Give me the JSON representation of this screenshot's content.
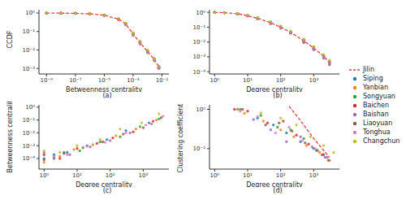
{
  "chart_data": [
    {
      "type": "scatter",
      "subtitle": "(a)",
      "xlabel": "Betweenness centrality",
      "ylabel": "CCDF",
      "log": true,
      "xlim": [
        3e-10,
        0.3
      ],
      "xticks": [
        {
          "value": 1e-09,
          "label": "10⁻⁹"
        },
        {
          "value": 1e-07,
          "label": "10⁻⁷"
        },
        {
          "value": 1e-05,
          "label": "10⁻⁵"
        },
        {
          "value": 0.001,
          "label": "10⁻³"
        },
        {
          "value": 0.1,
          "label": "10⁻¹"
        }
      ],
      "ylim": [
        0.0005,
        1.5
      ],
      "yticks": [
        {
          "value": 0.001,
          "label": "10⁻³"
        },
        {
          "value": 0.01,
          "label": "10⁻²"
        },
        {
          "value": 0.1,
          "label": "10⁻¹"
        },
        {
          "value": 1,
          "label": "10⁰"
        }
      ],
      "x": [
        1e-09,
        1e-08,
        1e-07,
        1e-06,
        1e-05,
        0.0001,
        0.0003,
        0.001,
        0.003,
        0.01,
        0.03,
        0.06
      ],
      "series": [
        {
          "name": "Jilin",
          "color": "#e8413c",
          "type": "line",
          "line_style": "dashed",
          "values": [
            0.99,
            0.98,
            0.96,
            0.9,
            0.76,
            0.46,
            0.26,
            0.073,
            0.025,
            0.0082,
            0.003,
            0.0012
          ]
        },
        {
          "name": "Siping",
          "color": "#1f77b4",
          "values": [
            0.99,
            0.98,
            0.96,
            0.9,
            0.75,
            0.45,
            0.25,
            0.07,
            0.025,
            0.008,
            0.003,
            0.0012
          ]
        },
        {
          "name": "Yanbian",
          "color": "#ff7f0e",
          "values": [
            0.99,
            0.97,
            0.95,
            0.88,
            0.72,
            0.42,
            0.23,
            0.06,
            0.02,
            0.007,
            0.0025,
            0.001
          ]
        },
        {
          "name": "Songyuan",
          "color": "#2ca02c",
          "values": [
            0.99,
            0.98,
            0.96,
            0.91,
            0.77,
            0.47,
            0.27,
            0.08,
            0.028,
            0.009,
            0.0032,
            0.0013
          ]
        },
        {
          "name": "Baichen",
          "color": "#d62728",
          "values": [
            0.99,
            0.98,
            0.97,
            0.92,
            0.78,
            0.48,
            0.26,
            0.075,
            0.026,
            0.0085,
            0.003,
            0.0011
          ]
        },
        {
          "name": "Baishan",
          "color": "#9467bd",
          "values": [
            0.99,
            0.97,
            0.95,
            0.89,
            0.73,
            0.43,
            0.24,
            0.065,
            0.022,
            0.0075,
            0.0027,
            0.001
          ]
        },
        {
          "name": "Liaoyuan",
          "color": "#8c564b",
          "values": [
            0.99,
            0.98,
            0.96,
            0.9,
            0.76,
            0.46,
            0.26,
            0.072,
            0.024,
            0.008,
            0.0028,
            0.0012
          ]
        },
        {
          "name": "Tonghua",
          "color": "#e377c2",
          "values": [
            0.99,
            0.98,
            0.95,
            0.89,
            0.74,
            0.44,
            0.24,
            0.068,
            0.023,
            0.0078,
            0.0029,
            0.0011
          ]
        },
        {
          "name": "Changchun",
          "color": "#bcbd22",
          "values": [
            0.99,
            0.98,
            0.97,
            0.92,
            0.79,
            0.5,
            0.28,
            0.085,
            0.03,
            0.01,
            0.0035,
            0.0014
          ]
        }
      ]
    },
    {
      "type": "scatter",
      "subtitle": "(b)",
      "xlabel": "Degree centrality",
      "log": true,
      "xlim": [
        0.7,
        6000
      ],
      "xticks": [
        {
          "value": 1,
          "label": "10⁰"
        },
        {
          "value": 10,
          "label": "10¹"
        },
        {
          "value": 100,
          "label": "10²"
        },
        {
          "value": 1000,
          "label": "10³"
        }
      ],
      "ylim": [
        7e-05,
        1.5
      ],
      "yticks": [
        {
          "value": 0.0001,
          "label": "10⁻⁴"
        },
        {
          "value": 0.001,
          "label": "10⁻³"
        },
        {
          "value": 0.01,
          "label": "10⁻²"
        },
        {
          "value": 0.1,
          "label": "10⁻¹"
        },
        {
          "value": 1,
          "label": "10⁰"
        }
      ],
      "x": [
        1,
        2,
        5,
        10,
        20,
        50,
        100,
        200,
        500,
        1000,
        2000,
        3000
      ],
      "series": [
        {
          "name": "Jilin",
          "color": "#e8413c",
          "type": "line",
          "line_style": "dashed",
          "values": [
            1,
            0.95,
            0.8,
            0.6,
            0.4,
            0.2,
            0.1,
            0.045,
            0.012,
            0.004,
            0.0011,
            0.0004
          ]
        },
        {
          "name": "Siping",
          "color": "#1f77b4",
          "values": [
            1,
            0.95,
            0.8,
            0.6,
            0.4,
            0.2,
            0.1,
            0.045,
            0.012,
            0.004,
            0.001,
            0.0004
          ]
        },
        {
          "name": "Yanbian",
          "color": "#ff7f0e",
          "values": [
            1,
            0.94,
            0.78,
            0.57,
            0.37,
            0.18,
            0.09,
            0.04,
            0.01,
            0.0033,
            0.0009,
            0.0003
          ]
        },
        {
          "name": "Songyuan",
          "color": "#2ca02c",
          "values": [
            1,
            0.96,
            0.82,
            0.62,
            0.42,
            0.22,
            0.11,
            0.05,
            0.014,
            0.0045,
            0.0012,
            0.0005
          ]
        },
        {
          "name": "Baichen",
          "color": "#d62728",
          "values": [
            1,
            0.95,
            0.81,
            0.61,
            0.41,
            0.21,
            0.1,
            0.047,
            0.013,
            0.004,
            0.0011,
            0.0004
          ]
        },
        {
          "name": "Baishan",
          "color": "#9467bd",
          "values": [
            1,
            0.93,
            0.77,
            0.56,
            0.36,
            0.17,
            0.085,
            0.038,
            0.009,
            0.003,
            0.0008,
            0.0003
          ]
        },
        {
          "name": "Liaoyuan",
          "color": "#8c564b",
          "values": [
            1,
            0.95,
            0.79,
            0.59,
            0.39,
            0.19,
            0.095,
            0.043,
            0.011,
            0.0037,
            0.001,
            0.0004
          ]
        },
        {
          "name": "Tonghua",
          "color": "#e377c2",
          "values": [
            1,
            0.94,
            0.8,
            0.6,
            0.39,
            0.2,
            0.1,
            0.044,
            0.012,
            0.0038,
            0.001,
            0.0004
          ]
        },
        {
          "name": "Changchun",
          "color": "#bcbd22",
          "values": [
            1,
            0.96,
            0.83,
            0.64,
            0.44,
            0.24,
            0.12,
            0.055,
            0.016,
            0.005,
            0.0014,
            0.0006
          ]
        }
      ]
    },
    {
      "type": "scatter",
      "subtitle": "(c)",
      "xlabel": "Degree centrality",
      "ylabel": "Betweenness centrality",
      "log": true,
      "xlim": [
        0.7,
        6000
      ],
      "xticks": [
        {
          "value": 1,
          "label": "10⁰"
        },
        {
          "value": 10,
          "label": "10¹"
        },
        {
          "value": 100,
          "label": "10²"
        },
        {
          "value": 1000,
          "label": "10³"
        }
      ],
      "ylim": [
        1.5e-05,
        1.5
      ],
      "yticks": [
        {
          "value": 0.0001,
          "label": "10⁻⁴"
        },
        {
          "value": 0.001,
          "label": "10⁻³"
        },
        {
          "value": 0.01,
          "label": "10⁻²"
        },
        {
          "value": 0.1,
          "label": "10⁻¹"
        },
        {
          "value": 1,
          "label": "10⁰"
        }
      ],
      "series": [
        {
          "name": "Siping",
          "color": "#1f77b4",
          "x": [
            1,
            2,
            5,
            20,
            80,
            300,
            1500
          ],
          "values": [
            0.0001,
            0.0002,
            0.0003,
            0.001,
            0.003,
            0.015,
            0.06
          ]
        },
        {
          "name": "Yanbian",
          "color": "#ff7f0e",
          "x": [
            1,
            3,
            8,
            30,
            150,
            600,
            2500
          ],
          "values": [
            5e-05,
            0.00015,
            0.0005,
            0.0012,
            0.006,
            0.02,
            0.1
          ]
        },
        {
          "name": "Songyuan",
          "color": "#2ca02c",
          "x": [
            2,
            4,
            12,
            50,
            200,
            800,
            3000
          ],
          "values": [
            0.0001,
            0.0003,
            0.0004,
            0.002,
            0.005,
            0.03,
            0.12
          ]
        },
        {
          "name": "Baichen",
          "color": "#d62728",
          "x": [
            1,
            3,
            10,
            40,
            120,
            500,
            2000
          ],
          "values": [
            0.0002,
            0.0001,
            0.0006,
            0.0015,
            0.004,
            0.012,
            0.08
          ]
        },
        {
          "name": "Baishan",
          "color": "#9467bd",
          "x": [
            1,
            2,
            6,
            25,
            100,
            400,
            1800
          ],
          "values": [
            0.0003,
            0.00012,
            0.0002,
            0.0008,
            0.0025,
            0.01,
            0.05
          ]
        },
        {
          "name": "Liaoyuan",
          "color": "#8c564b",
          "x": [
            1,
            4,
            15,
            60,
            250,
            1000,
            3500
          ],
          "values": [
            8e-05,
            0.00025,
            0.0007,
            0.002,
            0.008,
            0.025,
            0.15
          ]
        },
        {
          "name": "Tonghua",
          "color": "#e377c2",
          "x": [
            2,
            5,
            20,
            70,
            300,
            1200,
            4000
          ],
          "values": [
            0.00015,
            0.0002,
            0.0009,
            0.0018,
            0.01,
            0.04,
            0.2
          ]
        },
        {
          "name": "Changchun",
          "color": "#bcbd22",
          "x": [
            1,
            3,
            10,
            50,
            200,
            900,
            3000
          ],
          "values": [
            0.0004,
            0.0003,
            0.001,
            0.003,
            0.02,
            0.06,
            0.3
          ]
        }
      ]
    },
    {
      "type": "scatter",
      "subtitle": "(d)",
      "xlabel": "Degree centrality",
      "ylabel": "Clustering coefficient",
      "log": true,
      "legend": "right",
      "xlim": [
        0.7,
        6000
      ],
      "xticks": [
        {
          "value": 1,
          "label": "10⁰"
        },
        {
          "value": 10,
          "label": "10¹"
        },
        {
          "value": 100,
          "label": "10²"
        },
        {
          "value": 1000,
          "label": "10³"
        }
      ],
      "ylim": [
        0.03,
        1.3
      ],
      "yticks": [
        {
          "value": 0.1,
          "label": "10⁻¹"
        },
        {
          "value": 1,
          "label": "10⁰"
        }
      ],
      "series": [
        {
          "name": "Jilin",
          "color": "#e8413c",
          "type": "line",
          "line_style": "dashed",
          "x": [
            180,
            300,
            500,
            1000,
            2000,
            3000
          ],
          "values": [
            1.2,
            0.7,
            0.4,
            0.18,
            0.09,
            0.06
          ]
        },
        {
          "name": "Siping",
          "color": "#1f77b4",
          "x": [
            5,
            20,
            60,
            150,
            400,
            1000,
            2000
          ],
          "values": [
            1,
            0.6,
            0.4,
            0.25,
            0.15,
            0.1,
            0.07
          ]
        },
        {
          "name": "Yanbian",
          "color": "#ff7f0e",
          "x": [
            8,
            30,
            100,
            250,
            600,
            1500,
            3000
          ],
          "values": [
            0.8,
            0.5,
            0.3,
            0.2,
            0.12,
            0.08,
            0.05
          ]
        },
        {
          "name": "Songyuan",
          "color": "#2ca02c",
          "x": [
            6,
            25,
            80,
            200,
            500,
            1200,
            2500
          ],
          "values": [
            1,
            0.7,
            0.35,
            0.3,
            0.18,
            0.09,
            0.06
          ]
        },
        {
          "name": "Baichen",
          "color": "#d62728",
          "x": [
            4,
            10,
            40,
            120,
            300,
            700,
            1800
          ],
          "values": [
            1,
            0.9,
            0.45,
            0.5,
            0.22,
            0.13,
            0.07
          ]
        },
        {
          "name": "Baishan",
          "color": "#9467bd",
          "x": [
            5,
            15,
            50,
            150,
            400,
            900,
            2200
          ],
          "values": [
            1,
            0.55,
            0.3,
            0.15,
            0.2,
            0.11,
            0.06
          ]
        },
        {
          "name": "Liaoyuan",
          "color": "#8c564b",
          "x": [
            7,
            35,
            90,
            220,
            550,
            1300,
            2800
          ],
          "values": [
            1,
            0.4,
            0.45,
            0.28,
            0.14,
            0.09,
            0.05
          ]
        },
        {
          "name": "Tonghua",
          "color": "#e377c2",
          "x": [
            6,
            20,
            70,
            180,
            450,
            1100,
            2600
          ],
          "values": [
            0.9,
            0.65,
            0.25,
            0.35,
            0.16,
            0.1,
            0.06
          ]
        },
        {
          "name": "Changchun",
          "color": "#bcbd22",
          "x": [
            5,
            25,
            100,
            300,
            800,
            2000,
            4000
          ],
          "values": [
            1,
            0.8,
            0.6,
            0.4,
            0.2,
            0.12,
            0.08
          ]
        }
      ]
    }
  ]
}
